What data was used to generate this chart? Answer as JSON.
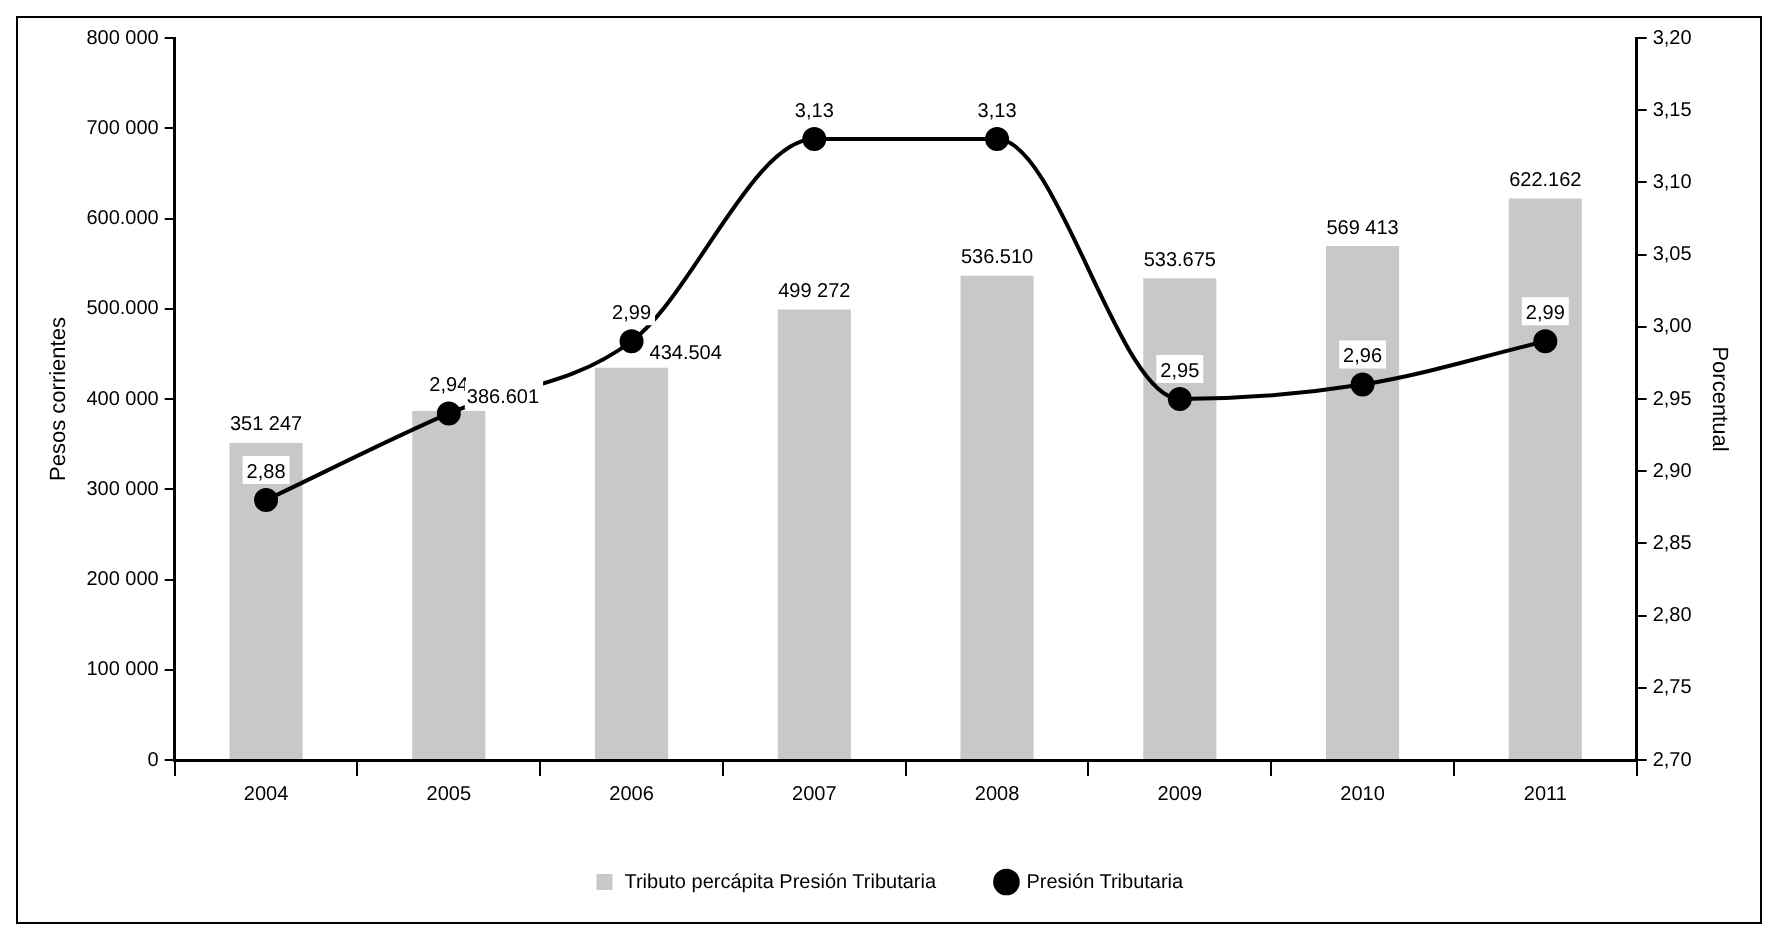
{
  "chart_data": {
    "type": "bar",
    "ylabel": "Pesos corrientes",
    "y2label": "Porcentual",
    "legend": "bottom",
    "categories": [
      "2004",
      "2005",
      "2006",
      "2007",
      "2008",
      "2009",
      "2010",
      "2011"
    ],
    "series": [
      {
        "name": "Tributo percápita Presión Tributaria",
        "color": "#c8c8c8",
        "values": [
          351247,
          386601,
          434504,
          499272,
          536510,
          533675,
          569413,
          622162
        ],
        "value_labels": [
          "351 247",
          "386.601",
          "434.504",
          "499 272",
          "536.510",
          "533.675",
          "569 413",
          "622.162"
        ]
      },
      {
        "name": "Presión Tributaria",
        "type": "line",
        "axis": "y2",
        "color": "#000000",
        "marker": "circle",
        "values": [
          2.88,
          2.94,
          2.99,
          3.13,
          3.13,
          2.95,
          2.96,
          2.99
        ],
        "value_labels": [
          "2,88",
          "2,94",
          "2,99",
          "3,13",
          "3,13",
          "2,95",
          "2,96",
          "2,99"
        ]
      }
    ],
    "ylim": [
      0,
      800000
    ],
    "yticks": [
      {
        "value": 0,
        "label": "0"
      },
      {
        "value": 100000,
        "label": "100 000"
      },
      {
        "value": 200000,
        "label": "200 000"
      },
      {
        "value": 300000,
        "label": "300 000"
      },
      {
        "value": 400000,
        "label": "400 000"
      },
      {
        "value": 500000,
        "label": "500.000"
      },
      {
        "value": 600000,
        "label": "600.000"
      },
      {
        "value": 700000,
        "label": "700 000"
      },
      {
        "value": 800000,
        "label": "800 000"
      }
    ],
    "y2lim": [
      2.7,
      3.2
    ],
    "y2ticks": [
      {
        "value": 2.7,
        "label": "2,70"
      },
      {
        "value": 2.75,
        "label": "2,75"
      },
      {
        "value": 2.8,
        "label": "2,80"
      },
      {
        "value": 2.85,
        "label": "2,85"
      },
      {
        "value": 2.9,
        "label": "2,90"
      },
      {
        "value": 2.95,
        "label": "2,95"
      },
      {
        "value": 3.0,
        "label": "3,00"
      },
      {
        "value": 3.05,
        "label": "3,05"
      },
      {
        "value": 3.1,
        "label": "3,10"
      },
      {
        "value": 3.15,
        "label": "3,15"
      },
      {
        "value": 3.2,
        "label": "3,20"
      }
    ]
  }
}
